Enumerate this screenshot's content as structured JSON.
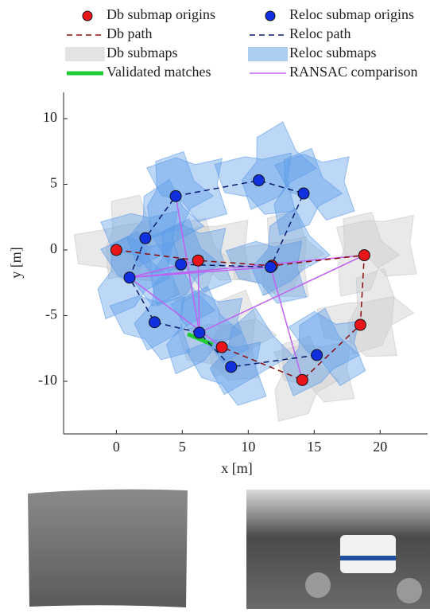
{
  "chart_data": {
    "type": "scatter",
    "xlabel": "x [m]",
    "ylabel": "y [m]",
    "xlim": [
      -4,
      23.6
    ],
    "ylim": [
      -14,
      12
    ],
    "xticks": [
      0,
      5,
      10,
      15,
      20
    ],
    "yticks": [
      -10,
      -5,
      0,
      5,
      10
    ],
    "series": [
      {
        "name": "Db submap origins",
        "style": "marker",
        "color": "#e8151b",
        "x": [
          0,
          6.2,
          11.8,
          18.8,
          18.5,
          14.1,
          8.0
        ],
        "y": [
          0,
          -0.8,
          -1.2,
          -0.4,
          -5.7,
          -9.9,
          -7.4
        ]
      },
      {
        "name": "Reloc submap origins",
        "style": "marker",
        "color": "#1030e0",
        "x": [
          4.5,
          10.8,
          14.2,
          2.2,
          4.9,
          11.7,
          1.0,
          2.9,
          6.3,
          8.7,
          15.2
        ],
        "y": [
          4.1,
          5.3,
          4.3,
          0.9,
          -1.1,
          -1.3,
          -2.1,
          -5.5,
          -6.3,
          -8.9,
          -8.0
        ]
      },
      {
        "name": "Db path",
        "style": "dashed",
        "color": "#8b0a0a",
        "x": [
          0,
          6.2,
          11.8,
          18.8,
          18.5,
          14.1,
          8.0
        ],
        "y": [
          0,
          -0.8,
          -1.2,
          -0.4,
          -5.7,
          -9.9,
          -7.4
        ]
      },
      {
        "name": "Reloc path",
        "style": "dashed",
        "color": "#0a1a70",
        "x": [
          4.9,
          11.7,
          14.2,
          10.8,
          4.5,
          2.2,
          1.0,
          2.9,
          6.3,
          8.7,
          15.2
        ],
        "y": [
          -1.1,
          -1.3,
          4.3,
          5.3,
          4.1,
          0.9,
          -2.1,
          -5.5,
          -6.3,
          -8.9,
          -8.0
        ]
      },
      {
        "name": "Db submaps",
        "style": "patch",
        "color": "#c8c8c8"
      },
      {
        "name": "Reloc submaps",
        "style": "patch",
        "color": "#5b9be8"
      },
      {
        "name": "Validated matches",
        "style": "thick",
        "color": "#22cc33",
        "x": [
          5.4,
          7.3
        ],
        "y": [
          -6.4,
          -7.2
        ]
      },
      {
        "name": "RANSAC comparison",
        "style": "thin",
        "color": "#c060f0",
        "x": [
          1.0,
          18.8,
          null,
          1.0,
          11.7,
          null,
          1.0,
          8.0,
          null,
          4.5,
          6.3,
          null,
          1.0,
          6.2,
          null,
          18.8,
          6.3,
          null,
          6.2,
          6.3,
          null,
          14.1,
          11.7
        ],
        "y": [
          -2.1,
          -0.4,
          null,
          -2.1,
          -1.3,
          null,
          -2.1,
          -7.4,
          null,
          4.1,
          -6.3,
          null,
          -2.1,
          -0.8,
          null,
          -0.4,
          -6.3,
          null,
          -0.8,
          -6.3,
          null,
          -9.9,
          -1.3
        ]
      }
    ]
  }
}
